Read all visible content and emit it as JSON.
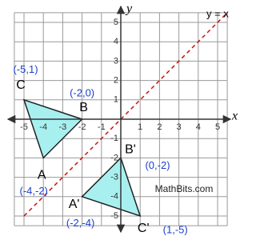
{
  "axes": {
    "x_label": "x",
    "y_label": "y",
    "xlim": [
      -5.5,
      5.5
    ],
    "ylim": [
      -5.5,
      5.5
    ],
    "xticks": [
      -5,
      -4,
      -3,
      -2,
      -1,
      1,
      2,
      3,
      4,
      5
    ],
    "yticks": [
      -5,
      -4,
      -3,
      -2,
      -1,
      1,
      2,
      3,
      4,
      5
    ]
  },
  "mirror_line": {
    "label": "y = x",
    "slope": 1,
    "intercept": 0
  },
  "triangles": [
    {
      "vertices": [
        {
          "name": "A",
          "x": -4,
          "y": -2,
          "label": "(-4,-2)"
        },
        {
          "name": "B",
          "x": -2,
          "y": 0,
          "label": "(-2,0)"
        },
        {
          "name": "C",
          "x": -5,
          "y": 1,
          "label": "(-5,1)"
        }
      ]
    },
    {
      "vertices": [
        {
          "name": "A'",
          "x": -2,
          "y": -4,
          "label": "(-2,-4)"
        },
        {
          "name": "B'",
          "x": 0,
          "y": -2,
          "label": "(0,-2)"
        },
        {
          "name": "C'",
          "x": 1,
          "y": -5,
          "label": "(1,-5)"
        }
      ]
    }
  ],
  "watermark": "MathBits.com"
}
